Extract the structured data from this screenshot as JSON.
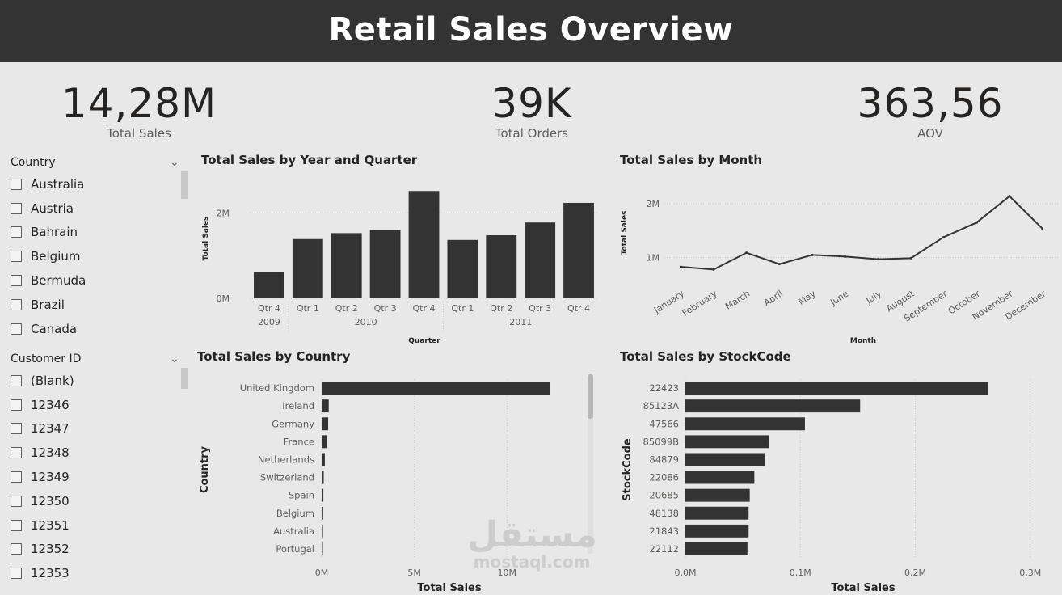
{
  "header": {
    "title": "Retail Sales Overview"
  },
  "kpis": [
    {
      "value": "14,28M",
      "label": "Total Sales"
    },
    {
      "value": "39K",
      "label": "Total Orders"
    },
    {
      "value": "363,56",
      "label": "AOV"
    }
  ],
  "slicers": {
    "country": {
      "title": "Country",
      "items": [
        "Australia",
        "Austria",
        "Bahrain",
        "Belgium",
        "Bermuda",
        "Brazil",
        "Canada"
      ]
    },
    "customer": {
      "title": "Customer ID",
      "items": [
        "(Blank)",
        "12346",
        "12347",
        "12348",
        "12349",
        "12350",
        "12351",
        "12352",
        "12353"
      ]
    }
  },
  "watermark": {
    "arabic": "مستقل",
    "latin": "mostaql.com"
  },
  "icons": {
    "chevron": "chevron-down-icon",
    "checkbox": "checkbox-icon"
  },
  "colors": {
    "bar": "#333333",
    "header_bg": "#333333",
    "background": "#e8e8e8"
  },
  "chart_data": [
    {
      "id": "quarter",
      "type": "bar",
      "title": "Total Sales by Year and Quarter",
      "xlabel": "Quarter",
      "ylabel": "Total Sales",
      "categories": [
        "Qtr 4",
        "Qtr 1",
        "Qtr 2",
        "Qtr 3",
        "Qtr 4",
        "Qtr 1",
        "Qtr 2",
        "Qtr 3",
        "Qtr 4"
      ],
      "groups": [
        {
          "label": "2009",
          "count": 1
        },
        {
          "label": "2010",
          "count": 4
        },
        {
          "label": "2011",
          "count": 4
        }
      ],
      "values": [
        0.62,
        1.39,
        1.53,
        1.6,
        2.52,
        1.37,
        1.48,
        1.78,
        2.24
      ],
      "yticks": [
        {
          "v": 0,
          "label": "0M"
        },
        {
          "v": 2,
          "label": "2M"
        }
      ],
      "ylim": [
        0,
        2.6
      ],
      "grid": true
    },
    {
      "id": "month",
      "type": "line",
      "title": "Total Sales by Month",
      "xlabel": "Month",
      "ylabel": "Total Sales",
      "categories": [
        "January",
        "February",
        "March",
        "April",
        "May",
        "June",
        "July",
        "August",
        "September",
        "October",
        "November",
        "December"
      ],
      "values": [
        0.83,
        0.78,
        1.09,
        0.88,
        1.05,
        1.02,
        0.97,
        0.99,
        1.38,
        1.65,
        2.14,
        1.54
      ],
      "yticks": [
        {
          "v": 1,
          "label": "1M"
        },
        {
          "v": 2,
          "label": "2M"
        }
      ],
      "ylim": [
        0.5,
        2.3
      ],
      "grid": true
    },
    {
      "id": "country",
      "type": "bar",
      "orientation": "horizontal",
      "title": "Total Sales by Country",
      "xlabel": "Total Sales",
      "ylabel": "Country",
      "categories": [
        "United Kingdom",
        "Ireland",
        "Germany",
        "France",
        "Netherlands",
        "Switzerland",
        "Spain",
        "Belgium",
        "Australia",
        "Portugal"
      ],
      "values": [
        12.3,
        0.38,
        0.35,
        0.29,
        0.17,
        0.11,
        0.09,
        0.08,
        0.07,
        0.06
      ],
      "xticks": [
        {
          "v": 0,
          "label": "0M"
        },
        {
          "v": 5,
          "label": "5M"
        },
        {
          "v": 10,
          "label": "10M"
        }
      ],
      "xlim": [
        0,
        14
      ],
      "grid": true
    },
    {
      "id": "stock",
      "type": "bar",
      "orientation": "horizontal",
      "title": "Total Sales by StockCode",
      "xlabel": "Total Sales",
      "ylabel": "StockCode",
      "categories": [
        "22423",
        "85123A",
        "47566",
        "85099B",
        "84879",
        "22086",
        "20685",
        "48138",
        "21843",
        "22112"
      ],
      "values": [
        0.263,
        0.152,
        0.104,
        0.073,
        0.069,
        0.06,
        0.056,
        0.055,
        0.055,
        0.054
      ],
      "xticks": [
        {
          "v": 0,
          "label": "0,0M"
        },
        {
          "v": 0.1,
          "label": "0,1M"
        },
        {
          "v": 0.2,
          "label": "0,2M"
        },
        {
          "v": 0.3,
          "label": "0,3M"
        }
      ],
      "xlim": [
        0,
        0.31
      ],
      "grid": true
    }
  ]
}
